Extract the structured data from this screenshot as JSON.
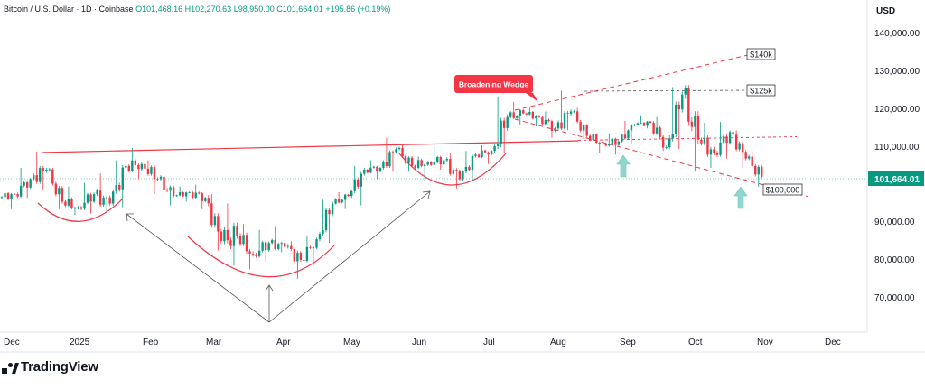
{
  "legend": {
    "symbol": "Bitcoin / U.S. Dollar · 1D · Coinbase",
    "open": "O101,468.16",
    "high": "H102,270.63",
    "low": "L98,950.00",
    "close": "C101,664.01",
    "change": "+195.86 (+0.19%)"
  },
  "price_axis": {
    "currency": "USD",
    "ticks": [
      "140,000.00",
      "130,000.00",
      "120,000.00",
      "110,000.00",
      "90,000.00",
      "80,000.00",
      "70,000.00"
    ],
    "last_price": "101,664.01"
  },
  "time_axis": {
    "ticks": [
      "Dec",
      "2025",
      "Feb",
      "Mar",
      "Apr",
      "May",
      "Jun",
      "Jul",
      "Aug",
      "Sep",
      "Oct",
      "Nov",
      "Dec"
    ]
  },
  "annotations": {
    "wedge_label": "Broadening Wedge",
    "target_140k": "$140k",
    "target_125k": "$125k",
    "target_100k": "$100,000"
  },
  "logo": {
    "text": "TradingView"
  },
  "colors": {
    "up": "#089981",
    "down": "#f23645",
    "trendline": "#f23645",
    "wedge_label_bg": "#f23645",
    "arrow_fill": "#8fd6cd",
    "last_price_bg": "#089981"
  },
  "chart_data": {
    "type": "candlestick",
    "y_unit": "USD",
    "ylim": [
      60000,
      147000
    ],
    "grid": false,
    "candles_weekly_ohlc": [
      {
        "label": "Dec",
        "o": 96000,
        "h": 98500,
        "l": 93000,
        "c": 97000
      },
      {
        "label": "Dec",
        "o": 97000,
        "h": 104000,
        "l": 96000,
        "c": 101000
      },
      {
        "label": "Dec",
        "o": 101000,
        "h": 108300,
        "l": 98000,
        "c": 103500
      },
      {
        "label": "Dec",
        "o": 103500,
        "h": 104000,
        "l": 93000,
        "c": 95000
      },
      {
        "label": "Dec",
        "o": 95000,
        "h": 99000,
        "l": 91500,
        "c": 93500
      },
      {
        "label": "2025",
        "o": 93500,
        "h": 100000,
        "l": 91800,
        "c": 97000
      },
      {
        "label": "Jan",
        "o": 97000,
        "h": 102500,
        "l": 92000,
        "c": 94500
      },
      {
        "label": "Jan",
        "o": 94500,
        "h": 106000,
        "l": 93500,
        "c": 104500
      },
      {
        "label": "Jan",
        "o": 104500,
        "h": 109300,
        "l": 101000,
        "c": 105000
      },
      {
        "label": "Jan",
        "o": 105000,
        "h": 106000,
        "l": 97000,
        "c": 101000
      },
      {
        "label": "Feb",
        "o": 101000,
        "h": 102500,
        "l": 94000,
        "c": 96500
      },
      {
        "label": "Feb",
        "o": 96500,
        "h": 99000,
        "l": 95000,
        "c": 97500
      },
      {
        "label": "Feb",
        "o": 97500,
        "h": 99500,
        "l": 93000,
        "c": 96000
      },
      {
        "label": "Feb",
        "o": 96000,
        "h": 97000,
        "l": 82000,
        "c": 84500
      },
      {
        "label": "Mar",
        "o": 84500,
        "h": 94500,
        "l": 78000,
        "c": 86000
      },
      {
        "label": "Mar",
        "o": 86000,
        "h": 89000,
        "l": 77000,
        "c": 81000
      },
      {
        "label": "Mar",
        "o": 81000,
        "h": 87500,
        "l": 79000,
        "c": 84000
      },
      {
        "label": "Mar",
        "o": 84000,
        "h": 88500,
        "l": 81500,
        "c": 83000
      },
      {
        "label": "Apr",
        "o": 83000,
        "h": 84500,
        "l": 74500,
        "c": 79500
      },
      {
        "label": "Apr",
        "o": 79500,
        "h": 86000,
        "l": 78000,
        "c": 85000
      },
      {
        "label": "Apr",
        "o": 85000,
        "h": 95500,
        "l": 84000,
        "c": 94500
      },
      {
        "label": "Apr",
        "o": 94500,
        "h": 97500,
        "l": 93000,
        "c": 96500
      },
      {
        "label": "May",
        "o": 96500,
        "h": 104500,
        "l": 94000,
        "c": 103500
      },
      {
        "label": "May",
        "o": 103500,
        "h": 106000,
        "l": 101000,
        "c": 104000
      },
      {
        "label": "May",
        "o": 104000,
        "h": 112000,
        "l": 103000,
        "c": 109000
      },
      {
        "label": "May",
        "o": 109000,
        "h": 110500,
        "l": 103000,
        "c": 104500
      },
      {
        "label": "Jun",
        "o": 104500,
        "h": 107000,
        "l": 100500,
        "c": 105500
      },
      {
        "label": "Jun",
        "o": 105500,
        "h": 110000,
        "l": 103500,
        "c": 106000
      },
      {
        "label": "Jun",
        "o": 106000,
        "h": 108000,
        "l": 98500,
        "c": 101000
      },
      {
        "label": "Jun",
        "o": 101000,
        "h": 108500,
        "l": 100500,
        "c": 107500
      },
      {
        "label": "Jul",
        "o": 107500,
        "h": 110000,
        "l": 105000,
        "c": 108500
      },
      {
        "label": "Jul",
        "o": 108500,
        "h": 123000,
        "l": 108000,
        "c": 117500
      },
      {
        "label": "Jul",
        "o": 117500,
        "h": 121500,
        "l": 115500,
        "c": 118500
      },
      {
        "label": "Jul",
        "o": 118500,
        "h": 120000,
        "l": 115000,
        "c": 117500
      },
      {
        "label": "Aug",
        "o": 117500,
        "h": 119000,
        "l": 112000,
        "c": 114500
      },
      {
        "label": "Aug",
        "o": 114500,
        "h": 124500,
        "l": 114000,
        "c": 119000
      },
      {
        "label": "Aug",
        "o": 119000,
        "h": 120000,
        "l": 111500,
        "c": 112500
      },
      {
        "label": "Aug",
        "o": 112500,
        "h": 114500,
        "l": 108000,
        "c": 110500
      },
      {
        "label": "Sep",
        "o": 110500,
        "h": 113000,
        "l": 107500,
        "c": 111000
      },
      {
        "label": "Sep",
        "o": 111000,
        "h": 116500,
        "l": 110500,
        "c": 115500
      },
      {
        "label": "Sep",
        "o": 115500,
        "h": 118000,
        "l": 114500,
        "c": 116000
      },
      {
        "label": "Sep",
        "o": 116000,
        "h": 117500,
        "l": 108500,
        "c": 109500
      },
      {
        "label": "Oct",
        "o": 109500,
        "h": 125500,
        "l": 109000,
        "c": 123500
      },
      {
        "label": "Oct",
        "o": 123500,
        "h": 126000,
        "l": 103000,
        "c": 111500
      },
      {
        "label": "Oct",
        "o": 111500,
        "h": 116000,
        "l": 104000,
        "c": 108000
      },
      {
        "label": "Oct",
        "o": 108000,
        "h": 116200,
        "l": 106500,
        "c": 113500
      },
      {
        "label": "Nov",
        "o": 113500,
        "h": 114000,
        "l": 104000,
        "c": 106500
      },
      {
        "label": "Nov",
        "o": 106500,
        "h": 108500,
        "l": 98950,
        "c": 101664
      }
    ]
  }
}
